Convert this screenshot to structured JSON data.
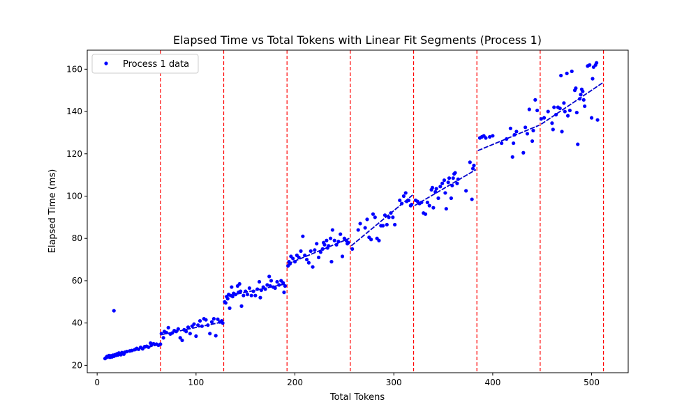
{
  "chart_data": {
    "type": "scatter",
    "title": "Elapsed Time vs Total Tokens with Linear Fit Segments (Process 1)",
    "xlabel": "Total Tokens",
    "ylabel": "Elapsed Time (ms)",
    "xlim": [
      -10,
      537
    ],
    "ylim": [
      16.5,
      169
    ],
    "xticks": [
      0,
      100,
      200,
      300,
      400,
      500
    ],
    "yticks": [
      20,
      40,
      60,
      80,
      100,
      120,
      140,
      160
    ],
    "grid": false,
    "legend": {
      "position": "top-left",
      "entries": [
        "Process 1 data"
      ]
    },
    "colors": {
      "points": "#0000ff",
      "fit": "#0000cc",
      "boundary": "#ff0000"
    },
    "series": [
      {
        "name": "Process 1 data",
        "points": [
          [
            8,
            23.2
          ],
          [
            9,
            23.6
          ],
          [
            10,
            24.2
          ],
          [
            11,
            24.0
          ],
          [
            12,
            24.6
          ],
          [
            13,
            23.8
          ],
          [
            14,
            24.5
          ],
          [
            15,
            24.0
          ],
          [
            16,
            24.8
          ],
          [
            17,
            24.3
          ],
          [
            17,
            45.8
          ],
          [
            18,
            25.0
          ],
          [
            19,
            24.7
          ],
          [
            20,
            25.4
          ],
          [
            21,
            24.9
          ],
          [
            22,
            25.8
          ],
          [
            23,
            25.2
          ],
          [
            24,
            25.0
          ],
          [
            25,
            26.0
          ],
          [
            26,
            25.6
          ],
          [
            27,
            25.3
          ],
          [
            28,
            26.2
          ],
          [
            30,
            26.5
          ],
          [
            33,
            26.8
          ],
          [
            35,
            27.0
          ],
          [
            38,
            27.4
          ],
          [
            40,
            28.0
          ],
          [
            42,
            27.6
          ],
          [
            44,
            28.5
          ],
          [
            46,
            27.8
          ],
          [
            48,
            28.8
          ],
          [
            50,
            29.0
          ],
          [
            52,
            28.6
          ],
          [
            54,
            30.5
          ],
          [
            55,
            29.7
          ],
          [
            57,
            30.2
          ],
          [
            60,
            30.0
          ],
          [
            62,
            29.5
          ],
          [
            64,
            30.0
          ],
          [
            65,
            35.0
          ],
          [
            67,
            33.0
          ],
          [
            68,
            36.0
          ],
          [
            70,
            35.5
          ],
          [
            72,
            37.8
          ],
          [
            74,
            34.8
          ],
          [
            76,
            35.3
          ],
          [
            78,
            36.4
          ],
          [
            80,
            36.0
          ],
          [
            82,
            37.2
          ],
          [
            84,
            33.0
          ],
          [
            86,
            31.8
          ],
          [
            88,
            36.8
          ],
          [
            90,
            36.0
          ],
          [
            92,
            38.0
          ],
          [
            94,
            35.0
          ],
          [
            96,
            38.5
          ],
          [
            98,
            39.5
          ],
          [
            100,
            33.8
          ],
          [
            102,
            39.0
          ],
          [
            104,
            41.0
          ],
          [
            106,
            38.5
          ],
          [
            108,
            42.0
          ],
          [
            110,
            41.5
          ],
          [
            112,
            39.0
          ],
          [
            114,
            35.0
          ],
          [
            116,
            40.5
          ],
          [
            118,
            42.0
          ],
          [
            120,
            34.0
          ],
          [
            122,
            41.8
          ],
          [
            124,
            40.5
          ],
          [
            126,
            41.0
          ],
          [
            127,
            40.0
          ],
          [
            129,
            50.0
          ],
          [
            130,
            49.5
          ],
          [
            131,
            52.5
          ],
          [
            132,
            51.5
          ],
          [
            133,
            53.5
          ],
          [
            134,
            47.0
          ],
          [
            135,
            53.0
          ],
          [
            136,
            57.0
          ],
          [
            137,
            52.5
          ],
          [
            138,
            54.0
          ],
          [
            140,
            53.5
          ],
          [
            142,
            57.5
          ],
          [
            143,
            54.5
          ],
          [
            144,
            58.5
          ],
          [
            145,
            55.0
          ],
          [
            146,
            48.0
          ],
          [
            148,
            53.0
          ],
          [
            150,
            55.0
          ],
          [
            152,
            53.5
          ],
          [
            154,
            56.5
          ],
          [
            156,
            53.0
          ],
          [
            158,
            55.0
          ],
          [
            160,
            53.0
          ],
          [
            162,
            56.0
          ],
          [
            164,
            59.5
          ],
          [
            165,
            52.0
          ],
          [
            166,
            55.5
          ],
          [
            168,
            57.0
          ],
          [
            170,
            56.0
          ],
          [
            172,
            58.0
          ],
          [
            174,
            62.0
          ],
          [
            175,
            57.5
          ],
          [
            176,
            60.0
          ],
          [
            178,
            57.0
          ],
          [
            180,
            56.5
          ],
          [
            182,
            59.5
          ],
          [
            184,
            58.0
          ],
          [
            186,
            60.0
          ],
          [
            188,
            59.0
          ],
          [
            189,
            54.5
          ],
          [
            190,
            57.5
          ],
          [
            193,
            67.0
          ],
          [
            194,
            69.0
          ],
          [
            195,
            68.0
          ],
          [
            196,
            71.5
          ],
          [
            198,
            70.5
          ],
          [
            200,
            69.0
          ],
          [
            202,
            72.0
          ],
          [
            204,
            71.0
          ],
          [
            206,
            74.0
          ],
          [
            208,
            81.0
          ],
          [
            210,
            72.0
          ],
          [
            212,
            70.0
          ],
          [
            214,
            68.5
          ],
          [
            216,
            74.0
          ],
          [
            218,
            66.5
          ],
          [
            220,
            74.5
          ],
          [
            222,
            77.5
          ],
          [
            224,
            71.0
          ],
          [
            226,
            73.5
          ],
          [
            228,
            75.0
          ],
          [
            229,
            78.0
          ],
          [
            230,
            77.0
          ],
          [
            232,
            79.0
          ],
          [
            233,
            75.5
          ],
          [
            234,
            76.5
          ],
          [
            236,
            80.0
          ],
          [
            237,
            69.0
          ],
          [
            238,
            84.0
          ],
          [
            240,
            79.0
          ],
          [
            242,
            77.0
          ],
          [
            244,
            78.5
          ],
          [
            246,
            82.0
          ],
          [
            248,
            71.5
          ],
          [
            250,
            80.0
          ],
          [
            252,
            79.0
          ],
          [
            253,
            77.5
          ],
          [
            254,
            78.0
          ],
          [
            258,
            75.0
          ],
          [
            264,
            84.0
          ],
          [
            266,
            87.0
          ],
          [
            271,
            85.0
          ],
          [
            273,
            89.0
          ],
          [
            275,
            80.5
          ],
          [
            277,
            79.5
          ],
          [
            279,
            91.5
          ],
          [
            281,
            90.0
          ],
          [
            283,
            80.0
          ],
          [
            285,
            79.0
          ],
          [
            287,
            86.0
          ],
          [
            289,
            86.0
          ],
          [
            291,
            91.0
          ],
          [
            293,
            86.5
          ],
          [
            295,
            90.0
          ],
          [
            297,
            92.0
          ],
          [
            299,
            90.0
          ],
          [
            301,
            86.5
          ],
          [
            306,
            98.0
          ],
          [
            308,
            96.5
          ],
          [
            310,
            100.0
          ],
          [
            312,
            101.5
          ],
          [
            313,
            97.5
          ],
          [
            315,
            98.0
          ],
          [
            317,
            95.5
          ],
          [
            318,
            96.0
          ],
          [
            322,
            98.0
          ],
          [
            324,
            97.5
          ],
          [
            326,
            96.5
          ],
          [
            328,
            97.0
          ],
          [
            330,
            92.0
          ],
          [
            332,
            91.5
          ],
          [
            334,
            97.0
          ],
          [
            336,
            95.5
          ],
          [
            338,
            103.0
          ],
          [
            339,
            104.0
          ],
          [
            340,
            94.5
          ],
          [
            342,
            102.0
          ],
          [
            343,
            103.5
          ],
          [
            345,
            99.0
          ],
          [
            347,
            104.5
          ],
          [
            349,
            106.0
          ],
          [
            351,
            107.5
          ],
          [
            352,
            101.5
          ],
          [
            353,
            94.0
          ],
          [
            355,
            106.5
          ],
          [
            356,
            108.5
          ],
          [
            358,
            99.0
          ],
          [
            359,
            105.0
          ],
          [
            360,
            108.5
          ],
          [
            361,
            110.5
          ],
          [
            362,
            111.0
          ],
          [
            364,
            106.0
          ],
          [
            365,
            108.0
          ],
          [
            373,
            102.5
          ],
          [
            377,
            116.0
          ],
          [
            379,
            98.5
          ],
          [
            380,
            113.0
          ],
          [
            381,
            114.5
          ],
          [
            387,
            127.5
          ],
          [
            389,
            128.0
          ],
          [
            391,
            128.5
          ],
          [
            393,
            127.5
          ],
          [
            397,
            128.0
          ],
          [
            400,
            128.5
          ],
          [
            409,
            125.0
          ],
          [
            414,
            127.0
          ],
          [
            418,
            132.0
          ],
          [
            420,
            118.5
          ],
          [
            421,
            125.0
          ],
          [
            422,
            129.0
          ],
          [
            424,
            130.5
          ],
          [
            431,
            120.5
          ],
          [
            433,
            132.5
          ],
          [
            435,
            129.5
          ],
          [
            437,
            141.0
          ],
          [
            440,
            126.0
          ],
          [
            441,
            131.0
          ],
          [
            443,
            145.5
          ],
          [
            445,
            140.5
          ],
          [
            449,
            136.5
          ],
          [
            452,
            137.0
          ],
          [
            456,
            140.0
          ],
          [
            460,
            134.5
          ],
          [
            461,
            131.5
          ],
          [
            462,
            142.0
          ],
          [
            464,
            138.5
          ],
          [
            466,
            142.0
          ],
          [
            468,
            141.5
          ],
          [
            469,
            157.0
          ],
          [
            470,
            130.5
          ],
          [
            472,
            144.0
          ],
          [
            473,
            140.0
          ],
          [
            475,
            158.0
          ],
          [
            476,
            138.0
          ],
          [
            478,
            140.5
          ],
          [
            480,
            159.0
          ],
          [
            483,
            150.0
          ],
          [
            484,
            151.0
          ],
          [
            485,
            139.5
          ],
          [
            486,
            124.5
          ],
          [
            488,
            146.0
          ],
          [
            489,
            148.0
          ],
          [
            490,
            150.5
          ],
          [
            491,
            149.5
          ],
          [
            492,
            145.5
          ],
          [
            493,
            142.5
          ],
          [
            496,
            161.5
          ],
          [
            498,
            162.0
          ],
          [
            500,
            137.0
          ],
          [
            501,
            155.5
          ],
          [
            502,
            161.0
          ],
          [
            504,
            162.0
          ],
          [
            505,
            163.0
          ],
          [
            506,
            136.0
          ]
        ]
      }
    ],
    "fit_segments": [
      {
        "x": [
          8,
          64
        ],
        "y": [
          23.5,
          30.0
        ]
      },
      {
        "x": [
          65,
          127
        ],
        "y": [
          34.5,
          40.5
        ]
      },
      {
        "x": [
          129,
          191
        ],
        "y": [
          52.5,
          58.5
        ]
      },
      {
        "x": [
          193,
          255
        ],
        "y": [
          68.0,
          80.0
        ]
      },
      {
        "x": [
          257,
          319
        ],
        "y": [
          76.5,
          100.5
        ]
      },
      {
        "x": [
          321,
          383
        ],
        "y": [
          95.5,
          112.5
        ]
      },
      {
        "x": [
          385,
          447
        ],
        "y": [
          121.5,
          133.5
        ]
      },
      {
        "x": [
          449,
          511
        ],
        "y": [
          134.0,
          153.5
        ]
      }
    ],
    "boundaries": [
      64,
      128,
      192,
      256,
      320,
      384,
      448,
      512
    ]
  }
}
